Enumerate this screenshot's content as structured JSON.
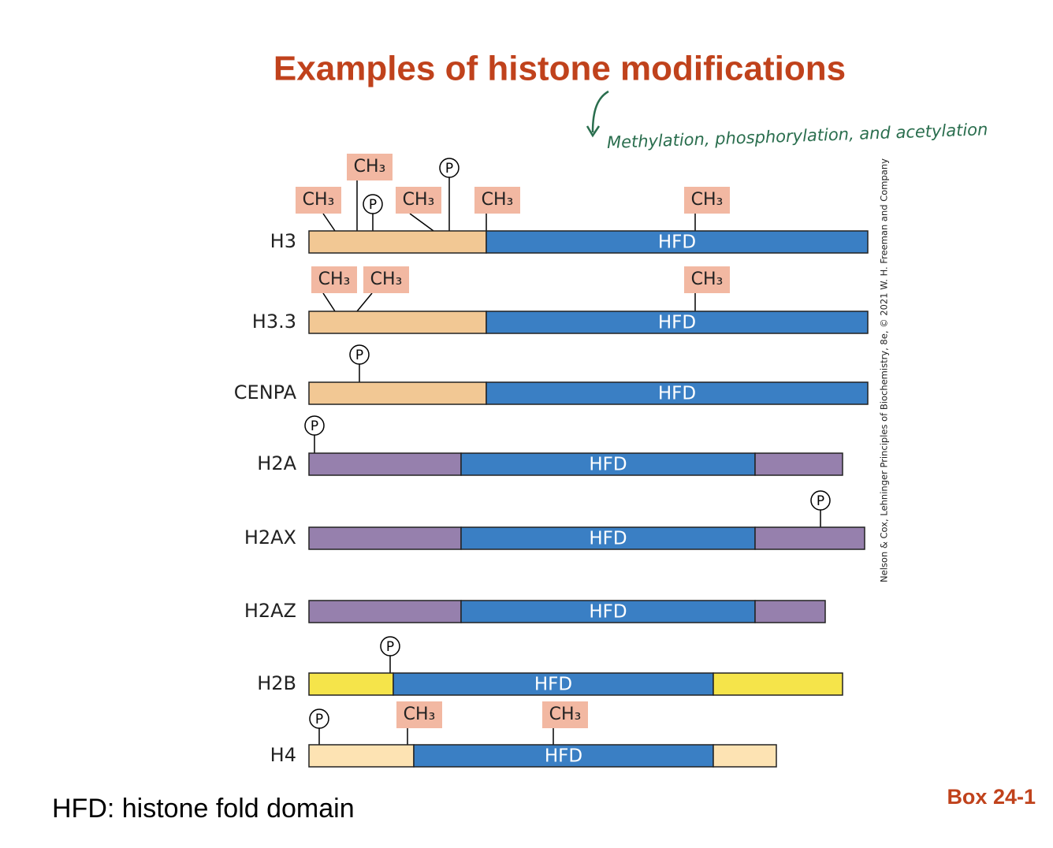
{
  "title": "Examples of histone modifications",
  "annotation": "Methylation, phosphorylation, and acetylation",
  "credit": "Nelson & Cox, Lehninger Principles of Biochemistry, 8e, © 2021 W. H. Freeman and Company",
  "rows": [
    {
      "label": "H3",
      "domain": "HFD",
      "modifications": [
        "CH₃",
        "CH₃",
        "P",
        "CH₃",
        "P",
        "CH₃",
        "CH₃"
      ]
    },
    {
      "label": "H3.3",
      "domain": "HFD",
      "modifications": [
        "CH₃",
        "CH₃",
        "CH₃"
      ]
    },
    {
      "label": "CENPA",
      "domain": "HFD",
      "modifications": [
        "P"
      ]
    },
    {
      "label": "H2A",
      "domain": "HFD",
      "modifications": [
        "P"
      ]
    },
    {
      "label": "H2AX",
      "domain": "HFD",
      "modifications": [
        "P"
      ]
    },
    {
      "label": "H2AZ",
      "domain": "HFD",
      "modifications": []
    },
    {
      "label": "H2B",
      "domain": "HFD",
      "modifications": [
        "P"
      ]
    },
    {
      "label": "H4",
      "domain": "HFD",
      "modifications": [
        "P",
        "CH₃",
        "CH₃"
      ]
    }
  ],
  "legend": "HFD: histone fold domain",
  "box": "Box 24-1"
}
